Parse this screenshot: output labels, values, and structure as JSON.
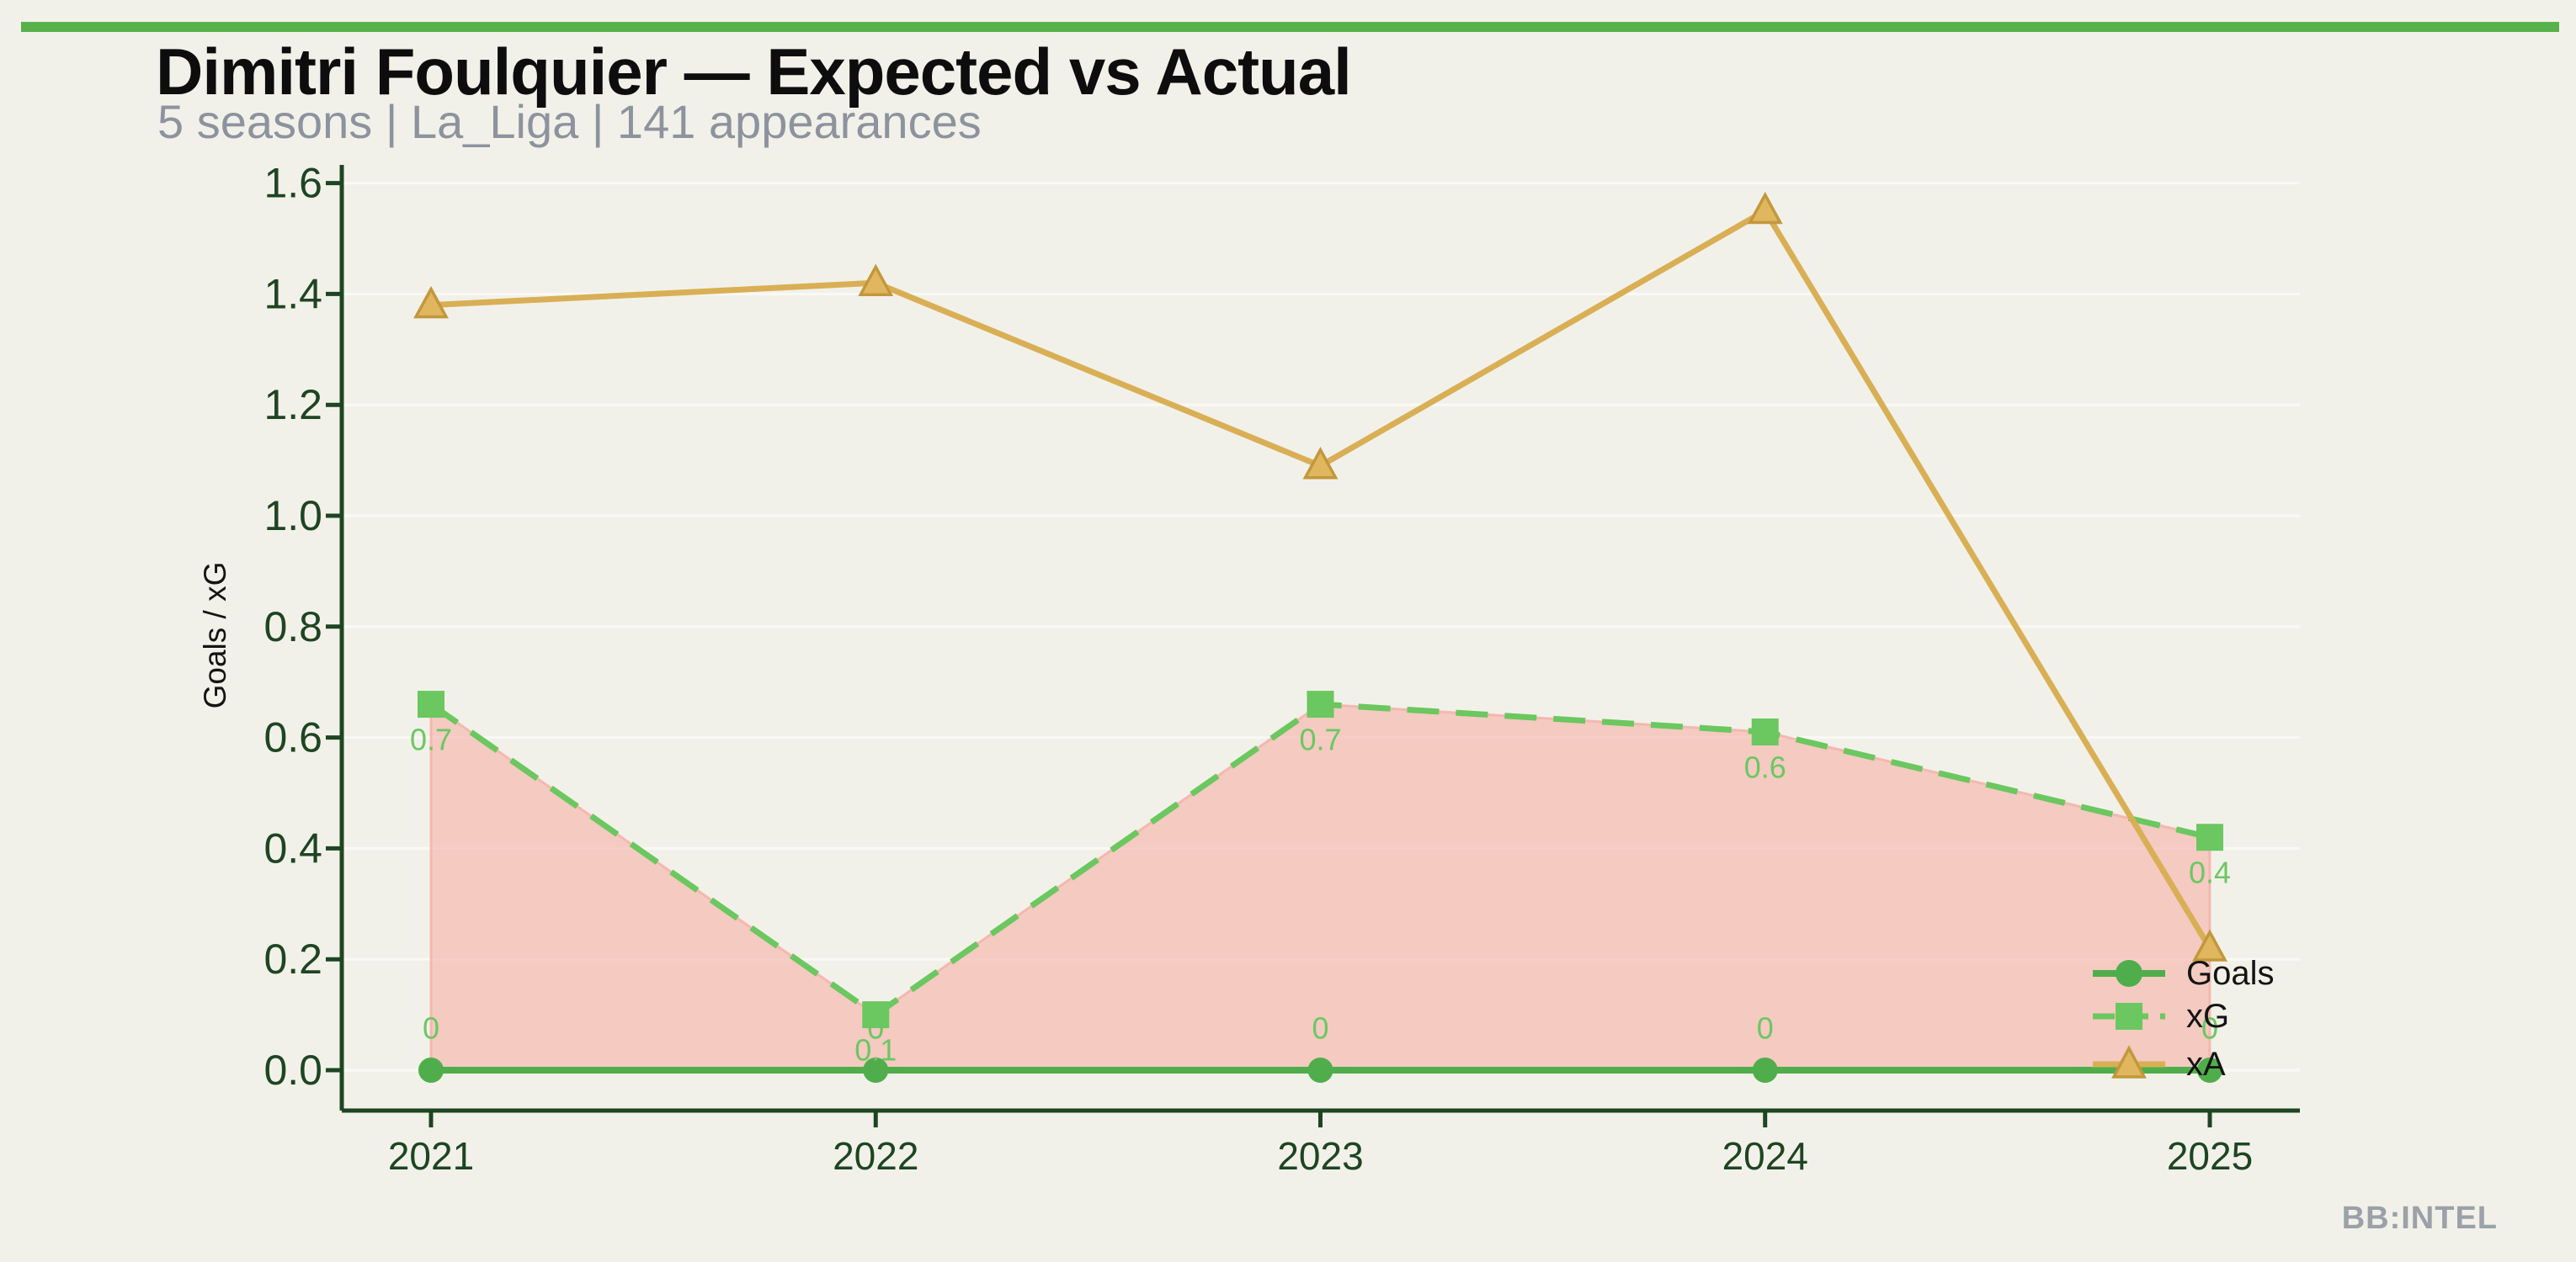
{
  "page": {
    "title": "Dimitri Foulquier — Expected vs Actual",
    "subtitle": "5 seasons | La_Liga | 141 appearances",
    "watermark": "BB:INTEL"
  },
  "colors": {
    "background": "#f2f1e9",
    "top_bar": "#57b24b",
    "title_black": "#0d0d0d",
    "subtitle_gray": "#8d939e",
    "watermark_gray": "#9aa1a9",
    "axis_green": "#1e4522",
    "goals_green": "#4fae4b",
    "xg_green": "#6bc75f",
    "xa_gold": "#d9af56",
    "xa_marker_fill": "#e0b75f",
    "xa_marker_edge": "#c3973c",
    "annotation_green": "#6cc763",
    "area_pink_fill": "rgba(246,164,154,0.5)",
    "area_pink_edge": "rgba(244,178,170,0.85)",
    "gridline": "rgba(255,255,255,0.55)",
    "legend_text_black": "#141414"
  },
  "chart_data": {
    "type": "line",
    "title": "Dimitri Foulquier — Expected vs Actual",
    "x": [
      2021,
      2022,
      2023,
      2024,
      2025
    ],
    "x_tick_labels": [
      "2021",
      "2022",
      "2023",
      "2024",
      "2025"
    ],
    "xlabel": "",
    "ylabel": "Goals / xG",
    "yticks": [
      0.0,
      0.2,
      0.4,
      0.6,
      0.8,
      1.0,
      1.2,
      1.4,
      1.6
    ],
    "ytick_labels": [
      "0.0",
      "0.2",
      "0.4",
      "0.6",
      "0.8",
      "1.0",
      "1.2",
      "1.4",
      "1.6"
    ],
    "ylim": [
      -0.09,
      1.63
    ],
    "xlim": [
      2020.8,
      2025.2
    ],
    "grid": "horizontal-only",
    "legend_position": "lower right",
    "series": [
      {
        "name": "Goals",
        "marker": "circle",
        "line_style": "solid",
        "values": [
          0,
          0,
          0,
          0,
          0
        ],
        "point_labels": [
          "0",
          "0",
          "0",
          "0",
          "0"
        ],
        "label_position": "above"
      },
      {
        "name": "xG",
        "marker": "square",
        "line_style": "dashed",
        "values": [
          0.66,
          0.1,
          0.66,
          0.61,
          0.42
        ],
        "point_labels": [
          "0.7",
          "0.1",
          "0.7",
          "0.6",
          "0.4"
        ],
        "label_position": "below"
      },
      {
        "name": "xA",
        "marker": "triangle",
        "line_style": "solid",
        "values": [
          1.38,
          1.42,
          1.09,
          1.55,
          0.22
        ],
        "point_labels": [],
        "label_position": "none"
      }
    ],
    "shaded_area": "pink fill between xG line and Goals line"
  }
}
